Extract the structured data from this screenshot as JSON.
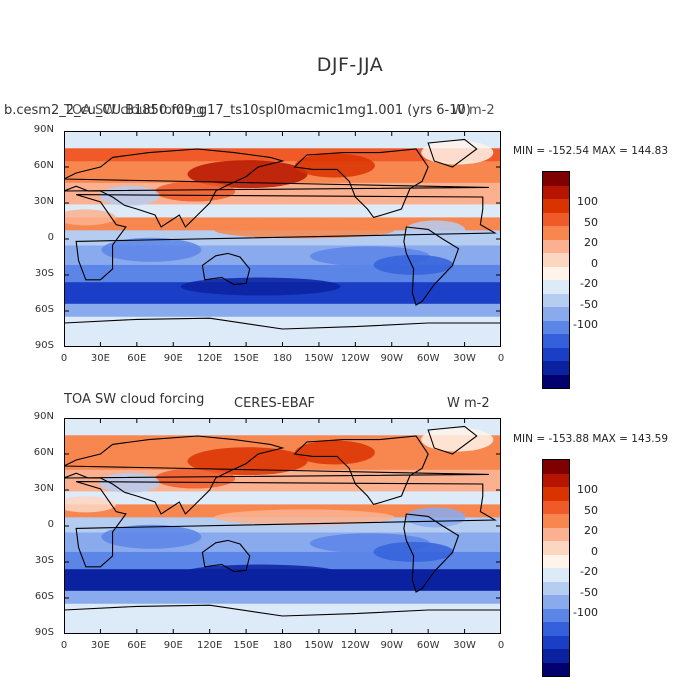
{
  "main_title": "DJF-JJA",
  "panels": [
    {
      "left_title": "b.cesm2_2_cu_CU.B1850.f09_g17_ts10spl0macmic1mg1.001 (yrs 6-10)",
      "center_title": "TOA SW cloud forcing",
      "right_title": "W m-2",
      "stats": "MIN = -152.54  MAX = 144.83"
    },
    {
      "left_title": "TOA SW cloud forcing",
      "center_title": "CERES-EBAF",
      "right_title": "W m-2",
      "stats": "MIN = -153.88  MAX = 143.59"
    }
  ],
  "lat_labels": [
    "90N",
    "60N",
    "30N",
    "0",
    "30S",
    "60S",
    "90S"
  ],
  "lon_labels": [
    "0",
    "30E",
    "60E",
    "90E",
    "120E",
    "150E",
    "180",
    "150W",
    "120W",
    "90W",
    "60W",
    "30W",
    "0"
  ],
  "colorbar": {
    "colors": [
      "#7f0000",
      "#b51500",
      "#d93300",
      "#f05a28",
      "#f7874f",
      "#fbb18f",
      "#fdd6c2",
      "#fff3ea",
      "#ddeaf8",
      "#b6cdf2",
      "#8aaaee",
      "#5c85e8",
      "#3461db",
      "#1a3fc6",
      "#0a22a0",
      "#00006e"
    ],
    "labels": [
      "100",
      "50",
      "20",
      "0",
      "-20",
      "-50",
      "-100"
    ]
  }
}
